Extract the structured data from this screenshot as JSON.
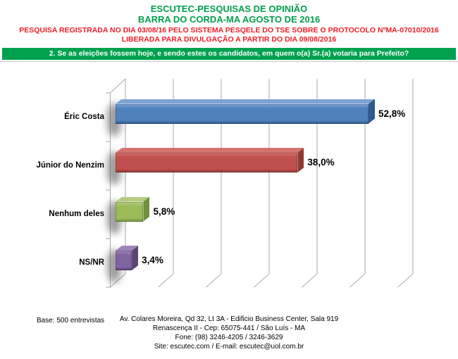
{
  "header": {
    "title_line1": "ESCUTEC-PESQUISAS DE OPINIÃO",
    "title_line2": "BARRA DO CORDA-MA AGOSTO DE 2016",
    "registration_line1": "PESQUISA REGISTRADA NO DIA 03/08/16 PELO SISTEMA PESQELE DO TSE SOBRE O PROTOCOLO NºMA-07010/2016",
    "registration_line2": "LIBERADA PARA DIVULGAÇÃO A PARTIR DO DIA 09/08/2016",
    "title_color": "#009e4c",
    "registration_color": "#ee1c25"
  },
  "question_banner": {
    "text": "2. Se as eleições fossem hoje, e sendo estes os candidatos, em quem o(a) Sr.(a) votaria para Prefeito?",
    "background_color": "#00a14f",
    "text_color": "#ffffff"
  },
  "chart_data": {
    "type": "bar",
    "orientation": "horizontal",
    "style": "3d",
    "title": "",
    "xlabel": "",
    "ylabel": "",
    "categories": [
      "Éric Costa",
      "Júnior do Nenzim",
      "Nenhum deles",
      "NS/NR"
    ],
    "values": [
      52.8,
      38.0,
      5.8,
      3.4
    ],
    "value_labels": [
      "52,8%",
      "38,0%",
      "5,8%",
      "3,4%"
    ],
    "xlim": [
      0,
      60
    ],
    "gridline_step": 10,
    "grid": true,
    "legend": false,
    "tick_labels_visible": false,
    "gridline_color": "#a8a8a8",
    "bar_colors": [
      {
        "name": "blue",
        "front": "#4f81bd",
        "top": "#7da2d4",
        "side": "#2e5a8f"
      },
      {
        "name": "red",
        "front": "#c0504d",
        "top": "#d3736f",
        "side": "#8e3835"
      },
      {
        "name": "green",
        "front": "#9bbb59",
        "top": "#b5cc80",
        "side": "#70903e"
      },
      {
        "name": "purple",
        "front": "#8064a2",
        "top": "#9d86b9",
        "side": "#5a4675"
      }
    ]
  },
  "footer": {
    "base": "Base: 500 entrevistas",
    "address_lines": [
      "Av. Colares Moreira, Qd 32, Lt 3A - Edificio Business Center, Sala 919",
      "Renascença II - Cep: 65075-441 / São Luís - MA",
      "Fone: (98) 3246-4205 / 3246-3629",
      "Site: escutec.com / E-mail: escutec@uol.com.br"
    ]
  }
}
